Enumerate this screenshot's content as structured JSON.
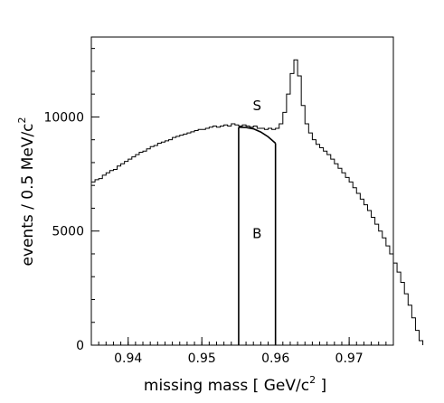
{
  "chart_data": {
    "type": "histogram",
    "xlabel_parts": [
      "missing mass [ GeV/c",
      "2",
      " ]"
    ],
    "ylabel_parts": [
      "events / 0.5 MeV/c",
      "2"
    ],
    "xlim": [
      0.935,
      0.976
    ],
    "ylim": [
      0,
      13500
    ],
    "xticks": [
      0.94,
      0.95,
      0.96,
      0.97
    ],
    "xtick_labels": [
      "0.94",
      "0.95",
      "0.96",
      "0.97"
    ],
    "yticks": [
      0,
      5000,
      10000
    ],
    "ytick_labels": [
      "0",
      "5000",
      "10000"
    ],
    "grid": false,
    "signal_window": [
      0.955,
      0.96
    ],
    "region_labels": {
      "signal": "S",
      "background": "B"
    },
    "background_curve": [
      [
        0.955,
        9550
      ],
      [
        0.956,
        9540
      ],
      [
        0.957,
        9480
      ],
      [
        0.958,
        9340
      ],
      [
        0.959,
        9130
      ],
      [
        0.96,
        8850
      ]
    ],
    "histogram": {
      "bin_edges_start": 0.935,
      "bin_width": 0.0005,
      "counts": [
        7150,
        7250,
        7300,
        7450,
        7550,
        7650,
        7700,
        7850,
        7950,
        8050,
        8150,
        8250,
        8350,
        8450,
        8500,
        8600,
        8700,
        8750,
        8850,
        8900,
        8950,
        9000,
        9100,
        9150,
        9200,
        9250,
        9300,
        9350,
        9400,
        9450,
        9450,
        9500,
        9550,
        9600,
        9550,
        9600,
        9650,
        9600,
        9700,
        9650,
        9600,
        9650,
        9600,
        9550,
        9600,
        9500,
        9500,
        9450,
        9500,
        9450,
        9500,
        9700,
        10200,
        11000,
        11900,
        12500,
        11800,
        10500,
        9700,
        9300,
        9000,
        8800,
        8650,
        8500,
        8350,
        8150,
        7950,
        7750,
        7550,
        7350,
        7150,
        6900,
        6650,
        6400,
        6150,
        5900,
        5600,
        5300,
        5000,
        4700,
        4350,
        4000,
        3600,
        3200,
        2750,
        2250,
        1750,
        1200,
        650,
        200
      ]
    }
  }
}
